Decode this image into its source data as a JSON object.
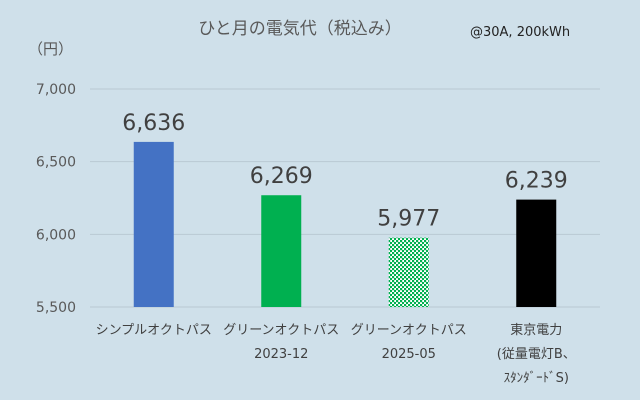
{
  "chart_data": {
    "type": "bar",
    "title": "ひと月の電気代（税込み）",
    "note": "@30A, 200kWh",
    "ylabel": "（円）",
    "ylim": [
      5500,
      7000
    ],
    "yticks": [
      "5,500",
      "6,000",
      "6,500",
      "7,000"
    ],
    "grid": true,
    "legend": "none",
    "categories": [
      {
        "lines": [
          "シンプルオクトパス"
        ],
        "value": 6636,
        "label": "6,636",
        "color": "#4472c4",
        "pattern": "solid"
      },
      {
        "lines": [
          "グリーンオクトパス",
          "2023-12"
        ],
        "value": 6269,
        "label": "6,269",
        "color": "#00b050",
        "pattern": "solid"
      },
      {
        "lines": [
          "グリーンオクトパス",
          "2025-05"
        ],
        "value": 5977,
        "label": "5,977",
        "color": "#00b050",
        "pattern": "dotted"
      },
      {
        "lines": [
          "東京電力",
          "(従量電灯B、",
          "ｽﾀﾝﾀﾞｰﾄﾞS)"
        ],
        "value": 6239,
        "label": "6,239",
        "color": "#000000",
        "pattern": "solid"
      }
    ]
  }
}
